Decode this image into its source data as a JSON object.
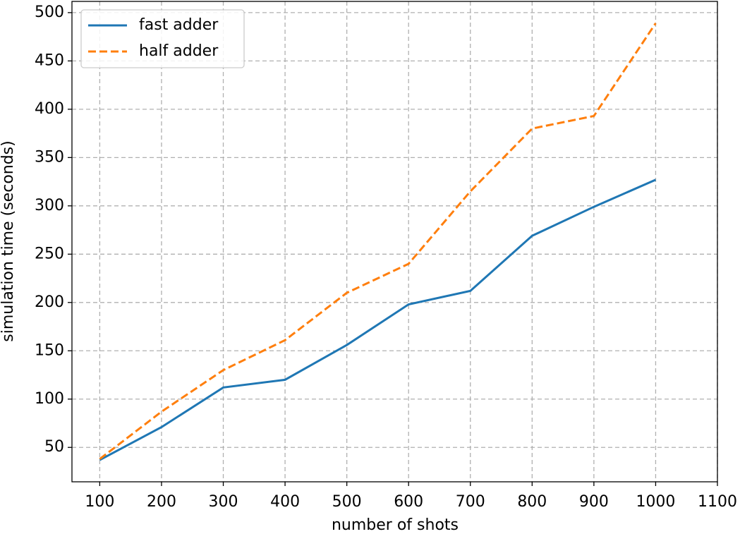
{
  "chart_data": {
    "type": "line",
    "xlabel": "number of shots",
    "ylabel": "simulation time (seconds)",
    "x": [
      100,
      200,
      300,
      400,
      500,
      600,
      700,
      800,
      900,
      1000
    ],
    "series": [
      {
        "name": "fast adder",
        "color": "#1f77b4",
        "dash": false,
        "values": [
          37,
          71,
          112,
          120,
          156,
          198,
          212,
          269,
          299,
          327
        ]
      },
      {
        "name": "half adder",
        "color": "#ff7f0e",
        "dash": true,
        "values": [
          38,
          87,
          130,
          161,
          210,
          240,
          315,
          380,
          393,
          489
        ]
      }
    ],
    "xlim": [
      55,
      1100
    ],
    "ylim": [
      14.4,
      511.6
    ],
    "xticks": [
      100,
      200,
      300,
      400,
      500,
      600,
      700,
      800,
      900,
      1000,
      1100
    ],
    "yticks": [
      50,
      100,
      150,
      200,
      250,
      300,
      350,
      400,
      450,
      500
    ],
    "grid": true,
    "legend": "upper left"
  }
}
